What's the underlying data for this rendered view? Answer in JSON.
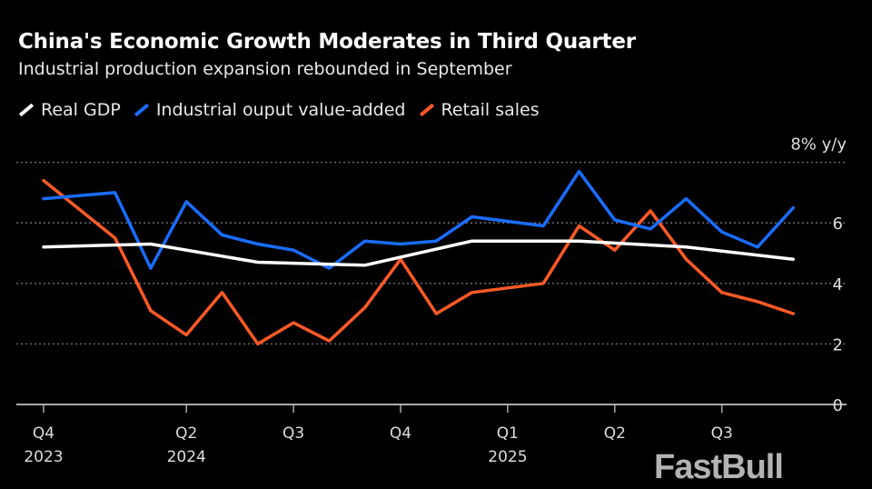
{
  "chart_data": {
    "type": "line",
    "title": "China's Economic Growth Moderates in Third Quarter",
    "subtitle": "Industrial production expansion rebounded in September",
    "ylabel": "8% y/y",
    "ylim": [
      0,
      8
    ],
    "yticks": [
      "0",
      "2",
      "4",
      "6"
    ],
    "grid": true,
    "legend": "top-left",
    "xticks": [
      {
        "q": "Q4",
        "year": "2023"
      },
      {
        "q": "Q2",
        "year": "2024"
      },
      {
        "q": "Q3",
        "year": ""
      },
      {
        "q": "Q4",
        "year": ""
      },
      {
        "q": "Q1",
        "year": "2025"
      },
      {
        "q": "Q2",
        "year": ""
      },
      {
        "q": "Q3",
        "year": ""
      }
    ],
    "series": [
      {
        "name": "Real GDP",
        "color": "#ffffff",
        "points": [
          [
            "2023-12",
            5.2
          ],
          [
            "2024-03",
            5.3
          ],
          [
            "2024-06",
            4.7
          ],
          [
            "2024-09",
            4.6
          ],
          [
            "2024-12",
            5.4
          ],
          [
            "2025-03",
            5.4
          ],
          [
            "2025-06",
            5.2
          ],
          [
            "2025-09",
            4.8
          ]
        ]
      },
      {
        "name": "Industrial ouput value-added",
        "color": "#1a6dff",
        "points": [
          [
            "2023-12",
            6.8
          ],
          [
            "2024-02",
            7.0
          ],
          [
            "2024-03",
            4.5
          ],
          [
            "2024-04",
            6.7
          ],
          [
            "2024-05",
            5.6
          ],
          [
            "2024-06",
            5.3
          ],
          [
            "2024-07",
            5.1
          ],
          [
            "2024-08",
            4.5
          ],
          [
            "2024-09",
            5.4
          ],
          [
            "2024-10",
            5.3
          ],
          [
            "2024-11",
            5.4
          ],
          [
            "2024-12",
            6.2
          ],
          [
            "2025-02",
            5.9
          ],
          [
            "2025-03",
            7.7
          ],
          [
            "2025-04",
            6.1
          ],
          [
            "2025-05",
            5.8
          ],
          [
            "2025-06",
            6.8
          ],
          [
            "2025-07",
            5.7
          ],
          [
            "2025-08",
            5.2
          ],
          [
            "2025-09",
            6.5
          ]
        ]
      },
      {
        "name": "Retail sales",
        "color": "#ff5a26",
        "points": [
          [
            "2023-12",
            7.4
          ],
          [
            "2024-02",
            5.5
          ],
          [
            "2024-03",
            3.1
          ],
          [
            "2024-04",
            2.3
          ],
          [
            "2024-05",
            3.7
          ],
          [
            "2024-06",
            2.0
          ],
          [
            "2024-07",
            2.7
          ],
          [
            "2024-08",
            2.1
          ],
          [
            "2024-09",
            3.2
          ],
          [
            "2024-10",
            4.8
          ],
          [
            "2024-11",
            3.0
          ],
          [
            "2024-12",
            3.7
          ],
          [
            "2025-02",
            4.0
          ],
          [
            "2025-03",
            5.9
          ],
          [
            "2025-04",
            5.1
          ],
          [
            "2025-05",
            6.4
          ],
          [
            "2025-06",
            4.8
          ],
          [
            "2025-07",
            3.7
          ],
          [
            "2025-08",
            3.4
          ],
          [
            "2025-09",
            3.0
          ]
        ]
      }
    ]
  },
  "watermark": "FastBull"
}
